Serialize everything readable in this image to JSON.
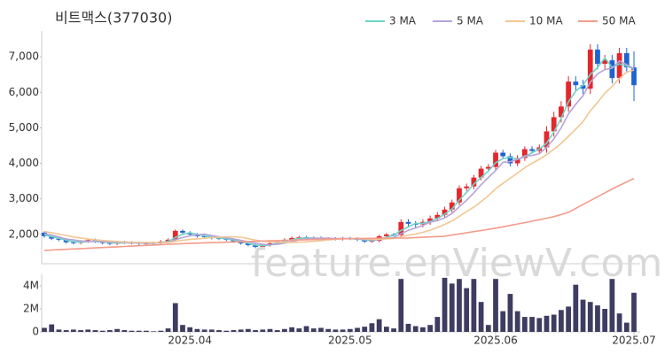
{
  "watermark": "feature.enViewV.com",
  "chart_data": [
    {
      "type": "candlestick",
      "title": "비트맥스(377030)",
      "ylim": [
        1175,
        7725
      ],
      "yticks": [
        {
          "value": 2000,
          "label": "2,000"
        },
        {
          "value": 3000,
          "label": "3,000"
        },
        {
          "value": 4000,
          "label": "4,000"
        },
        {
          "value": 5000,
          "label": "5,000"
        },
        {
          "value": 6000,
          "label": "6,000"
        },
        {
          "value": 7000,
          "label": "7,000"
        }
      ],
      "up_color": "#e5262c",
      "down_color": "#1f62d0",
      "open": [
        2050,
        1950,
        1880,
        1850,
        1780,
        1760,
        1800,
        1840,
        1800,
        1760,
        1740,
        1780,
        1770,
        1760,
        1740,
        1750,
        1760,
        1800,
        1850,
        2100,
        2050,
        2000,
        1950,
        1930,
        1900,
        1880,
        1850,
        1800,
        1750,
        1700,
        1650,
        1700,
        1750,
        1800,
        1850,
        1900,
        1920,
        1880,
        1900,
        1880,
        1880,
        1870,
        1890,
        1880,
        1850,
        1800,
        1820,
        1950,
        2000,
        1980,
        2350,
        2300,
        2280,
        2350,
        2450,
        2550,
        2700,
        2900,
        3300,
        3350,
        3600,
        3850,
        3900,
        4300,
        4200,
        4000,
        4150,
        4400,
        4350,
        4450,
        4900,
        5300,
        5600,
        6300,
        6200,
        6100,
        7200,
        6800,
        6900,
        6400,
        7100,
        6700
      ],
      "high": [
        2090,
        1990,
        1920,
        1890,
        1820,
        1840,
        1880,
        1880,
        1840,
        1800,
        1820,
        1820,
        1810,
        1800,
        1790,
        1800,
        1840,
        1890,
        2140,
        2140,
        2090,
        2040,
        1990,
        1970,
        1940,
        1920,
        1890,
        1840,
        1790,
        1740,
        1740,
        1790,
        1840,
        1890,
        1940,
        1960,
        1960,
        1940,
        1940,
        1920,
        1920,
        1930,
        1930,
        1920,
        1890,
        1860,
        1990,
        2040,
        2040,
        2430,
        2430,
        2380,
        2430,
        2530,
        2630,
        2780,
        2980,
        3380,
        3430,
        3680,
        3930,
        3980,
        4380,
        4380,
        4280,
        4230,
        4480,
        4480,
        4530,
        5050,
        5450,
        5750,
        6450,
        6450,
        6350,
        7350,
        7350,
        7050,
        7050,
        7250,
        7250,
        7150
      ],
      "low": [
        1910,
        1840,
        1810,
        1740,
        1720,
        1720,
        1760,
        1760,
        1720,
        1700,
        1700,
        1730,
        1720,
        1700,
        1700,
        1710,
        1720,
        1760,
        1810,
        2010,
        1960,
        1910,
        1890,
        1860,
        1840,
        1810,
        1760,
        1710,
        1660,
        1610,
        1610,
        1660,
        1710,
        1760,
        1810,
        1860,
        1840,
        1840,
        1840,
        1840,
        1830,
        1830,
        1840,
        1810,
        1760,
        1760,
        1780,
        1910,
        1940,
        1900,
        2220,
        2200,
        2200,
        2270,
        2370,
        2470,
        2620,
        2820,
        3220,
        3270,
        3520,
        3770,
        3820,
        4120,
        3920,
        3920,
        4070,
        4270,
        4270,
        4300,
        4750,
        5150,
        5450,
        6050,
        5950,
        5950,
        6650,
        6650,
        6250,
        6250,
        6550,
        5750
      ],
      "close": [
        1950,
        1880,
        1850,
        1780,
        1760,
        1800,
        1840,
        1800,
        1760,
        1740,
        1780,
        1770,
        1760,
        1740,
        1750,
        1760,
        1800,
        1850,
        2100,
        2050,
        2000,
        1950,
        1930,
        1900,
        1880,
        1850,
        1800,
        1750,
        1700,
        1650,
        1700,
        1750,
        1800,
        1850,
        1900,
        1920,
        1880,
        1900,
        1880,
        1880,
        1870,
        1890,
        1880,
        1850,
        1800,
        1820,
        1950,
        2000,
        1980,
        2350,
        2300,
        2280,
        2350,
        2450,
        2550,
        2700,
        2900,
        3300,
        3350,
        3600,
        3850,
        3900,
        4300,
        4200,
        4000,
        4150,
        4400,
        4350,
        4450,
        4900,
        5300,
        5600,
        6300,
        6200,
        6100,
        7200,
        6800,
        6900,
        6400,
        7100,
        6700,
        6200
      ],
      "series": [
        {
          "name": "3 MA",
          "color": "#6fd3c8",
          "values": [
            1990,
            1940,
            1893,
            1837,
            1797,
            1780,
            1800,
            1813,
            1800,
            1767,
            1760,
            1763,
            1770,
            1757,
            1750,
            1750,
            1770,
            1803,
            1917,
            2000,
            2050,
            2000,
            1960,
            1927,
            1903,
            1877,
            1843,
            1800,
            1750,
            1700,
            1683,
            1700,
            1750,
            1800,
            1850,
            1890,
            1900,
            1900,
            1887,
            1887,
            1877,
            1880,
            1880,
            1873,
            1843,
            1823,
            1857,
            1923,
            1977,
            2110,
            2210,
            2310,
            2310,
            2360,
            2450,
            2567,
            2717,
            2967,
            3183,
            3417,
            3600,
            3783,
            4017,
            4133,
            4167,
            4117,
            4183,
            4300,
            4400,
            4567,
            4883,
            5267,
            5733,
            6033,
            6200,
            6500,
            6700,
            6967,
            6700,
            6800,
            6733,
            6667
          ]
        },
        {
          "name": "5 MA",
          "color": "#b6a3d8",
          "values": [
            2020,
            1980,
            1930,
            1870,
            1844,
            1814,
            1806,
            1796,
            1792,
            1788,
            1784,
            1770,
            1762,
            1758,
            1760,
            1756,
            1762,
            1780,
            1852,
            1912,
            1960,
            1990,
            2006,
            1966,
            1932,
            1902,
            1872,
            1836,
            1796,
            1750,
            1720,
            1710,
            1720,
            1750,
            1800,
            1844,
            1870,
            1890,
            1896,
            1892,
            1882,
            1884,
            1880,
            1874,
            1858,
            1848,
            1860,
            1884,
            1910,
            2020,
            2116,
            2182,
            2252,
            2346,
            2386,
            2466,
            2590,
            2780,
            2960,
            3170,
            3400,
            3600,
            3800,
            4030,
            4050,
            4110,
            4210,
            4220,
            4270,
            4450,
            4690,
            5000,
            5390,
            5660,
            5900,
            6280,
            6520,
            6640,
            6680,
            6880,
            6780,
            6660
          ]
        },
        {
          "name": "10 MA",
          "color": "#f2c692",
          "values": [
            2080,
            2050,
            2010,
            1970,
            1930,
            1900,
            1870,
            1850,
            1830,
            1816,
            1799,
            1788,
            1779,
            1775,
            1774,
            1770,
            1766,
            1771,
            1805,
            1836,
            1858,
            1876,
            1893,
            1909,
            1922,
            1931,
            1931,
            1921,
            1881,
            1841,
            1811,
            1791,
            1778,
            1773,
            1775,
            1782,
            1790,
            1805,
            1823,
            1846,
            1863,
            1877,
            1885,
            1885,
            1875,
            1865,
            1864,
            1874,
            1884,
            1931,
            1974,
            2013,
            2060,
            2120,
            2195,
            2283,
            2378,
            2508,
            2645,
            2770,
            2925,
            3087,
            3282,
            3437,
            3582,
            3727,
            3877,
            4002,
            4117,
            4247,
            4392,
            4562,
            4762,
            4962,
            5172,
            5477,
            5717,
            5972,
            6167,
            6387,
            6567,
            6627
          ]
        },
        {
          "name": "50 MA",
          "color": "#f49b8c",
          "values": [
            1550,
            1560,
            1570,
            1580,
            1590,
            1600,
            1610,
            1620,
            1630,
            1640,
            1650,
            1660,
            1670,
            1680,
            1690,
            1700,
            1710,
            1720,
            1730,
            1740,
            1750,
            1756,
            1762,
            1769,
            1775,
            1781,
            1788,
            1794,
            1800,
            1806,
            1812,
            1819,
            1825,
            1831,
            1838,
            1844,
            1850,
            1856,
            1862,
            1869,
            1875,
            1878,
            1881,
            1884,
            1887,
            1890,
            1892,
            1894,
            1896,
            1898,
            1900,
            1910,
            1920,
            1930,
            1940,
            1950,
            1982,
            2014,
            2046,
            2078,
            2110,
            2142,
            2175,
            2214,
            2253,
            2292,
            2330,
            2372,
            2414,
            2456,
            2500,
            2560,
            2620,
            2730,
            2840,
            2950,
            3060,
            3170,
            3280,
            3378,
            3476,
            3575
          ]
        }
      ]
    },
    {
      "type": "bar",
      "color": "#3e3c61",
      "ylim": [
        0,
        5
      ],
      "yticks": [
        0,
        {
          "value": 2,
          "label": "2M"
        },
        {
          "value": 4,
          "label": "4M"
        }
      ],
      "categories": [
        null,
        null,
        null,
        null,
        null,
        null,
        null,
        null,
        null,
        null,
        null,
        null,
        null,
        null,
        null,
        null,
        null,
        null,
        null,
        null,
        "2025.04",
        null,
        null,
        null,
        null,
        null,
        null,
        null,
        null,
        null,
        null,
        null,
        null,
        null,
        null,
        null,
        null,
        null,
        null,
        null,
        null,
        null,
        "2025.05",
        null,
        null,
        null,
        null,
        null,
        null,
        null,
        null,
        null,
        null,
        null,
        null,
        null,
        null,
        null,
        null,
        null,
        null,
        null,
        "2025.06",
        null,
        null,
        null,
        null,
        null,
        null,
        null,
        null,
        null,
        null,
        null,
        null,
        null,
        null,
        null,
        null,
        null,
        null,
        "2025.07"
      ],
      "values": [
        0.35,
        0.65,
        0.2,
        0.15,
        0.2,
        0.15,
        0.2,
        0.15,
        0.1,
        0.15,
        0.25,
        0.15,
        0.1,
        0.1,
        0.1,
        0.05,
        0.1,
        0.3,
        2.5,
        0.6,
        0.4,
        0.25,
        0.2,
        0.2,
        0.15,
        0.1,
        0.15,
        0.2,
        0.25,
        0.15,
        0.2,
        0.25,
        0.15,
        0.25,
        0.4,
        0.3,
        0.5,
        0.3,
        0.35,
        0.25,
        0.2,
        0.2,
        0.25,
        0.35,
        0.45,
        0.75,
        1.1,
        0.45,
        0.3,
        4.6,
        0.7,
        0.5,
        0.4,
        0.6,
        1.3,
        4.7,
        4.2,
        4.6,
        3.8,
        4.6,
        2.6,
        0.6,
        4.6,
        1.8,
        3.3,
        1.8,
        1.3,
        1.3,
        1.2,
        1.4,
        1.5,
        1.9,
        2.2,
        4.1,
        2.8,
        2.6,
        2.3,
        2.0,
        4.6,
        1.6,
        0.8,
        3.4
      ]
    }
  ]
}
